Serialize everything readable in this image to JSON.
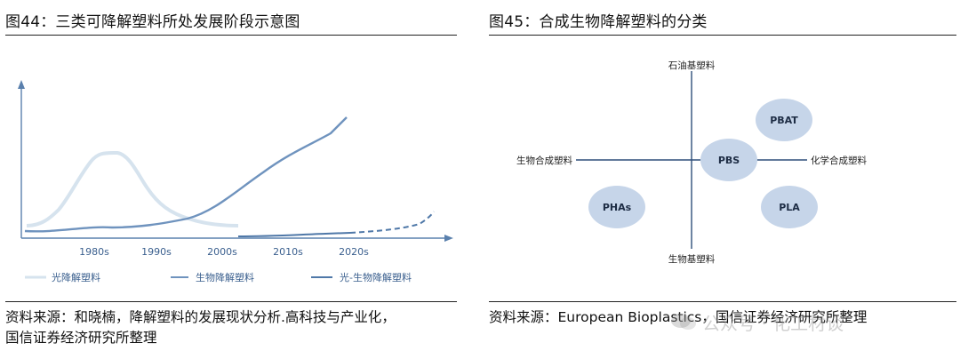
{
  "left_figure": {
    "title": "图44：三类可降解塑料所处发展阶段示意图",
    "source_line1": "资料来源：和晓楠，降解塑料的发展现状分析.高科技与产业化，",
    "source_line2": "国信证券经济研究所整理",
    "x_ticks": [
      "1980s",
      "1990s",
      "2000s",
      "2010s",
      "2020s"
    ],
    "legend": {
      "photo": "光降解塑料",
      "bio": "生物降解塑料",
      "photo_bio": "光-生物降解塑料"
    },
    "colors": {
      "photo": "#d6e3ee",
      "bio": "#6f93be",
      "photo_bio": "#4f78a8",
      "axis": "#5a80ad"
    }
  },
  "right_figure": {
    "title": "图45：合成生物降解塑料的分类",
    "source": "资料来源：European Bioplastics，国信证券经济研究所整理",
    "axis_top": "石油基塑料",
    "axis_bottom": "生物基塑料",
    "axis_left": "生物合成塑料",
    "axis_right": "化学合成塑料",
    "bubbles": [
      "PBAT",
      "PBS",
      "PHAs",
      "PLA"
    ],
    "bubble_color": "#c6d5e9"
  },
  "watermark": "公众号 · 化工材谈"
}
